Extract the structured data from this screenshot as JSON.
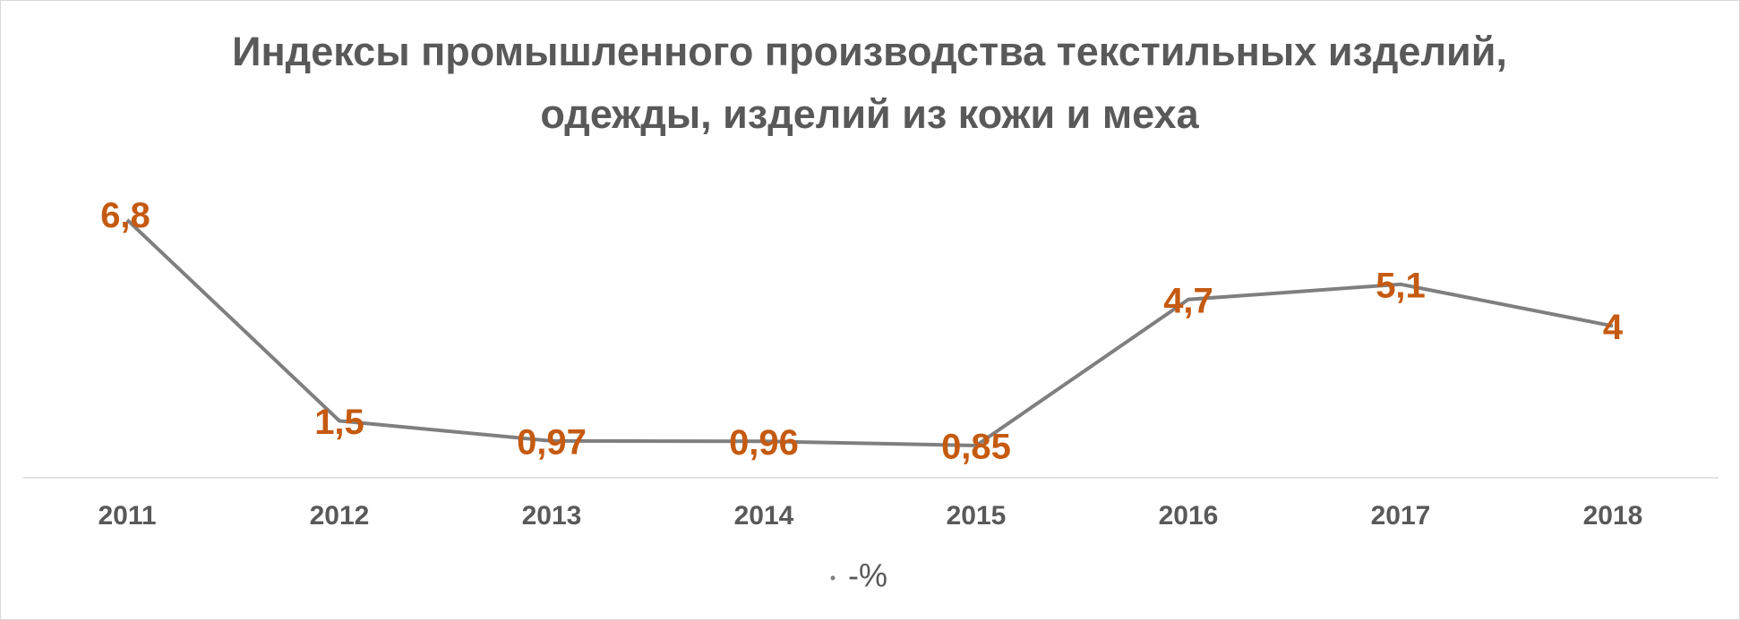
{
  "chart_data": {
    "type": "line",
    "title": "Индексы промышленного производства текстильных изделий, одежды, изделий из кожи и меха",
    "categories": [
      "2011",
      "2012",
      "2013",
      "2014",
      "2015",
      "2016",
      "2017",
      "2018"
    ],
    "series": [
      {
        "name": "-%",
        "color": "#7f7f7f",
        "values": [
          6.8,
          1.5,
          0.97,
          0.96,
          0.85,
          4.7,
          5.1,
          4
        ],
        "value_labels": [
          "6,8",
          "1,5",
          "0,97",
          "0,96",
          "0,85",
          "4,7",
          "5,1",
          "4"
        ],
        "label_color": "#c55a11"
      }
    ]
  }
}
